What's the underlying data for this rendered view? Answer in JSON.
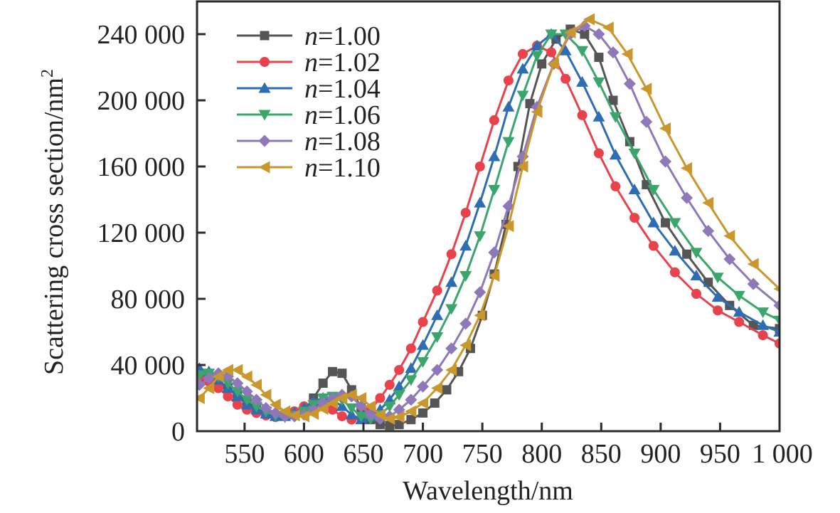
{
  "chart_data": {
    "type": "line",
    "title": "",
    "xlabel": "Wavelength/nm",
    "ylabel": "Scattering cross section/nm",
    "ylabel_superscript": "2",
    "xlim": [
      510,
      1000
    ],
    "ylim": [
      0,
      250000
    ],
    "xticks": [
      550,
      600,
      650,
      700,
      750,
      800,
      850,
      900,
      950,
      1000
    ],
    "xtick_labels": [
      "550",
      "600",
      "650",
      "700",
      "750",
      "800",
      "850",
      "900",
      "950",
      "1 000"
    ],
    "yticks": [
      0,
      40000,
      80000,
      120000,
      160000,
      200000,
      240000
    ],
    "ytick_labels": [
      "0",
      "40 000",
      "80 000",
      "120 000",
      "160 000",
      "200 000",
      "240 000"
    ],
    "grid": false,
    "legend_position": "top-left",
    "series": [
      {
        "name": "n=1.00",
        "label_var": "n",
        "label_val": "=1.00",
        "color": "#555555",
        "marker": "square",
        "x": [
          512,
          520,
          528,
          536,
          544,
          552,
          560,
          568,
          576,
          584,
          592,
          600,
          608,
          616,
          624,
          632,
          640,
          648,
          656,
          664,
          672,
          680,
          690,
          700,
          710,
          720,
          730,
          740,
          750,
          760,
          770,
          780,
          790,
          800,
          812,
          824,
          836,
          848,
          860,
          874,
          888,
          904,
          922,
          940,
          958,
          978,
          1000
        ],
        "y": [
          30000,
          33000,
          30000,
          26000,
          22000,
          18000,
          14000,
          11000,
          9500,
          9000,
          10000,
          12000,
          20000,
          29000,
          36000,
          35000,
          25000,
          14000,
          7000,
          4000,
          3500,
          4000,
          7000,
          11000,
          17000,
          25000,
          36000,
          50000,
          70000,
          95000,
          125000,
          160000,
          198000,
          222000,
          237000,
          243000,
          240000,
          226000,
          200000,
          175000,
          149000,
          126000,
          107000,
          90000,
          76000,
          64000,
          62000
        ]
      },
      {
        "name": "n=1.02",
        "label_var": "n",
        "label_val": "=1.02",
        "color": "#e8434d",
        "marker": "circle",
        "x": [
          512,
          520,
          528,
          536,
          544,
          552,
          560,
          568,
          576,
          584,
          592,
          600,
          608,
          616,
          624,
          632,
          640,
          648,
          656,
          664,
          672,
          680,
          690,
          700,
          712,
          724,
          736,
          748,
          760,
          772,
          784,
          796,
          808,
          820,
          834,
          848,
          862,
          878,
          894,
          912,
          930,
          948,
          966,
          986,
          1000
        ],
        "y": [
          33000,
          30000,
          26000,
          21000,
          16000,
          13000,
          11000,
          9500,
          8500,
          9500,
          12000,
          15000,
          17000,
          16000,
          13000,
          9000,
          7000,
          8000,
          13000,
          20000,
          28000,
          37000,
          50000,
          66000,
          85000,
          107000,
          132000,
          160000,
          188000,
          212000,
          228000,
          233000,
          229000,
          213000,
          191000,
          168000,
          148000,
          129000,
          112000,
          96000,
          83000,
          73000,
          66000,
          58000,
          53000
        ]
      },
      {
        "name": "n=1.04",
        "label_var": "n",
        "label_val": "=1.04",
        "color": "#2e6db4",
        "marker": "triangle-up",
        "x": [
          512,
          520,
          528,
          536,
          544,
          552,
          560,
          568,
          576,
          584,
          592,
          600,
          608,
          616,
          624,
          632,
          640,
          648,
          656,
          664,
          672,
          680,
          690,
          700,
          712,
          724,
          736,
          748,
          760,
          772,
          784,
          796,
          808,
          820,
          834,
          848,
          862,
          878,
          894,
          912,
          930,
          948,
          966,
          986,
          1000
        ],
        "y": [
          38000,
          36000,
          31000,
          26000,
          21000,
          16000,
          13000,
          10500,
          9000,
          9000,
          11000,
          14000,
          18000,
          20000,
          19000,
          15000,
          10000,
          7000,
          8500,
          13000,
          19000,
          27000,
          38000,
          52000,
          70000,
          90000,
          112000,
          138000,
          166000,
          196000,
          219000,
          233000,
          240000,
          230000,
          211000,
          190000,
          167000,
          146000,
          126000,
          109000,
          94000,
          81000,
          72000,
          64000,
          60000
        ]
      },
      {
        "name": "n=1.06",
        "label_var": "n",
        "label_val": "=1.06",
        "color": "#3aa66b",
        "marker": "triangle-down",
        "x": [
          512,
          520,
          528,
          536,
          544,
          552,
          560,
          568,
          576,
          584,
          592,
          600,
          608,
          616,
          624,
          632,
          640,
          648,
          656,
          664,
          672,
          680,
          690,
          700,
          712,
          724,
          736,
          748,
          760,
          772,
          784,
          796,
          808,
          820,
          834,
          848,
          862,
          878,
          894,
          912,
          930,
          948,
          966,
          986,
          1000
        ],
        "y": [
          34000,
          35000,
          33000,
          29000,
          24000,
          19000,
          15000,
          12000,
          9500,
          8500,
          9500,
          12000,
          16000,
          20000,
          21000,
          19000,
          14000,
          9000,
          7500,
          10000,
          15000,
          22000,
          31000,
          42000,
          57000,
          74000,
          94000,
          118000,
          146000,
          175000,
          203000,
          227000,
          240000,
          240000,
          230000,
          211000,
          190000,
          168000,
          146000,
          126000,
          108000,
          93000,
          82000,
          72000,
          67000
        ]
      },
      {
        "name": "n=1.08",
        "label_var": "n",
        "label_val": "=1.08",
        "color": "#8e78b8",
        "marker": "diamond",
        "x": [
          512,
          520,
          528,
          536,
          544,
          552,
          560,
          568,
          576,
          584,
          592,
          600,
          608,
          616,
          624,
          632,
          640,
          648,
          656,
          664,
          672,
          680,
          690,
          700,
          712,
          724,
          736,
          748,
          760,
          772,
          784,
          796,
          810,
          824,
          836,
          848,
          860,
          874,
          888,
          904,
          922,
          940,
          958,
          978,
          1000
        ],
        "y": [
          28000,
          32000,
          35000,
          33000,
          29000,
          24000,
          19000,
          14000,
          11000,
          9000,
          9000,
          10000,
          13000,
          17000,
          20000,
          22000,
          21000,
          15000,
          10000,
          7500,
          9000,
          13000,
          19000,
          27000,
          37000,
          50000,
          65000,
          84000,
          108000,
          136000,
          166000,
          196000,
          222000,
          240000,
          245000,
          240000,
          229000,
          210000,
          187000,
          163000,
          141000,
          121000,
          104000,
          89000,
          76000
        ]
      },
      {
        "name": "n=1.10",
        "label_var": "n",
        "label_val": "=1.10",
        "color": "#c9972b",
        "marker": "triangle-left",
        "x": [
          512,
          520,
          528,
          536,
          544,
          552,
          560,
          568,
          576,
          584,
          592,
          600,
          608,
          616,
          624,
          632,
          640,
          648,
          656,
          664,
          672,
          680,
          690,
          700,
          712,
          724,
          736,
          748,
          760,
          772,
          784,
          796,
          810,
          824,
          840,
          856,
          872,
          888,
          904,
          922,
          940,
          958,
          978,
          1000
        ],
        "y": [
          20000,
          26000,
          33000,
          37000,
          37000,
          33000,
          28000,
          22000,
          16000,
          12000,
          9500,
          9000,
          10500,
          13500,
          17000,
          20000,
          22000,
          20000,
          15000,
          10000,
          7500,
          8500,
          12000,
          17000,
          26000,
          37000,
          52000,
          70000,
          94000,
          124000,
          160000,
          193000,
          222000,
          241000,
          249000,
          244000,
          228000,
          207000,
          183000,
          159000,
          138000,
          118000,
          101000,
          86000
        ]
      }
    ]
  }
}
